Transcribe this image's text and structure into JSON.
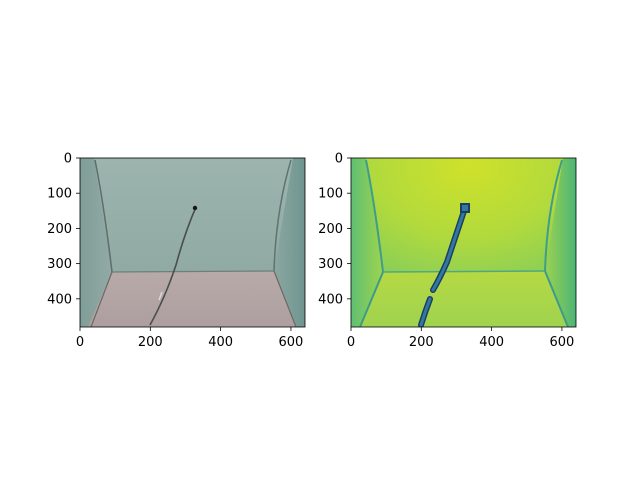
{
  "figure": {
    "panels": [
      {
        "name": "rgb-image",
        "x_ticks": [
          "0",
          "200",
          "400",
          "600"
        ],
        "y_ticks": [
          "0",
          "100",
          "200",
          "300",
          "400"
        ],
        "x_tick_values": [
          0,
          200,
          400,
          600
        ],
        "y_tick_values": [
          0,
          100,
          200,
          300,
          400
        ],
        "extent_x": [
          0,
          640
        ],
        "extent_y": [
          0,
          480
        ]
      },
      {
        "name": "depth-image",
        "x_ticks": [
          "0",
          "200",
          "400",
          "600"
        ],
        "y_ticks": [
          "0",
          "100",
          "200",
          "300",
          "400"
        ],
        "x_tick_values": [
          0,
          200,
          400,
          600
        ],
        "y_tick_values": [
          0,
          100,
          200,
          300,
          400
        ],
        "extent_x": [
          0,
          640
        ],
        "extent_y": [
          0,
          480
        ]
      }
    ],
    "colors": {
      "rgb_wall": "#8fa8a2",
      "rgb_wall_light": "#a2b6b0",
      "rgb_floor": "#b6a8a6",
      "rgb_cable": "#4a4f4d",
      "depth_center": "#c8e02a",
      "depth_mid": "#a8d64a",
      "depth_edge": "#6cc36c",
      "depth_dark": "#2b6f8c",
      "depth_outline": "#1f3d63"
    }
  }
}
